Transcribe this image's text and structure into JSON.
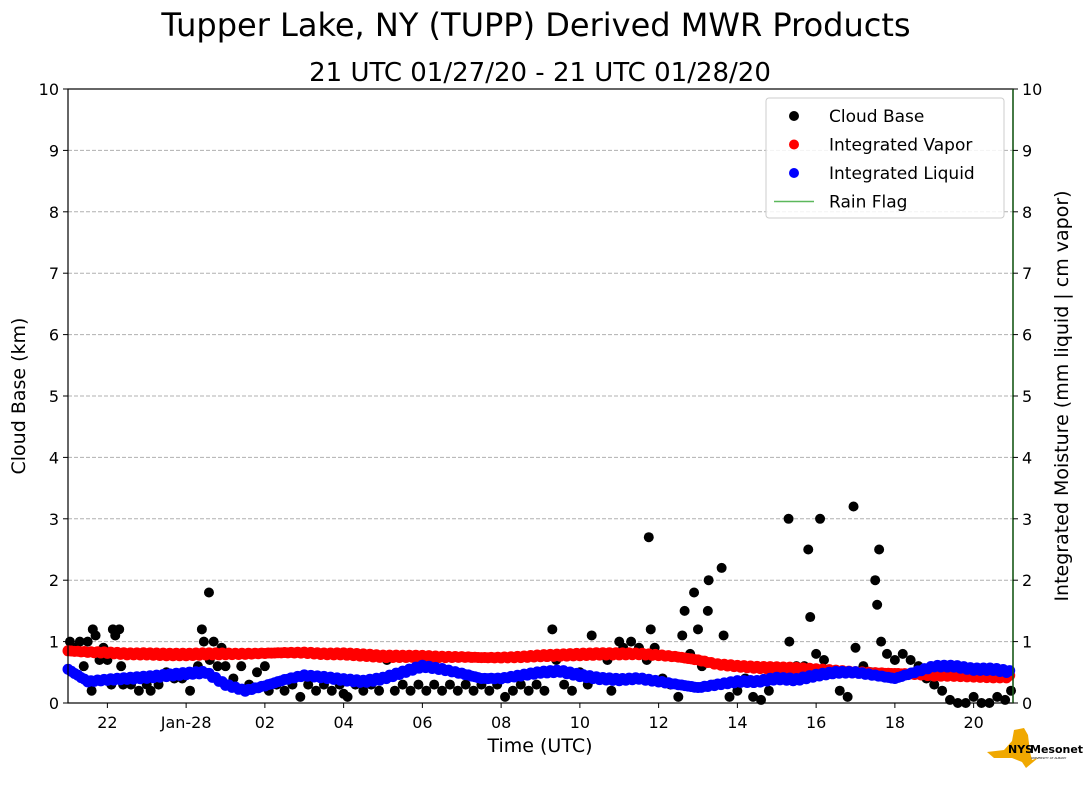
{
  "chart_data": {
    "type": "scatter",
    "title": "Tupper Lake, NY (TUPP) Derived MWR Products",
    "subtitle": "21 UTC 01/27/20 - 21 UTC 01/28/20",
    "xlabel": "Time (UTC)",
    "ylabel": "Cloud Base (km)",
    "ylabel_right": "Integrated Moisture (mm liquid | cm vapor)",
    "x_unit": "hours since 21 UTC 01/27/20",
    "xlim": [
      0,
      24
    ],
    "ylim": [
      0,
      10
    ],
    "ylim_right": [
      0,
      10
    ],
    "x_ticks": [
      {
        "t": 1,
        "label": "22"
      },
      {
        "t": 3,
        "label": "Jan-28"
      },
      {
        "t": 5,
        "label": "02"
      },
      {
        "t": 7,
        "label": "04"
      },
      {
        "t": 9,
        "label": "06"
      },
      {
        "t": 11,
        "label": "08"
      },
      {
        "t": 13,
        "label": "10"
      },
      {
        "t": 15,
        "label": "12"
      },
      {
        "t": 17,
        "label": "14"
      },
      {
        "t": 19,
        "label": "16"
      },
      {
        "t": 21,
        "label": "18"
      },
      {
        "t": 23,
        "label": "20"
      }
    ],
    "y_ticks": [
      "0",
      "1",
      "2",
      "3",
      "4",
      "5",
      "6",
      "7",
      "8",
      "9",
      "10"
    ],
    "grid": "horizontal dashed",
    "legend_position": "top-right",
    "legend": [
      {
        "label": "Cloud Base",
        "color": "#000000",
        "kind": "dot"
      },
      {
        "label": "Integrated Vapor",
        "color": "#ff0000",
        "kind": "dot"
      },
      {
        "label": "Integrated Liquid",
        "color": "#0000ff",
        "kind": "dot"
      },
      {
        "label": "Rain Flag",
        "color": "#5cb85c",
        "kind": "line"
      }
    ],
    "series": [
      {
        "name": "Integrated Vapor",
        "x_step_hours": 0.5,
        "values": [
          0.85,
          0.83,
          0.82,
          0.8,
          0.8,
          0.79,
          0.79,
          0.8,
          0.8,
          0.8,
          0.81,
          0.82,
          0.82,
          0.8,
          0.8,
          0.78,
          0.76,
          0.76,
          0.76,
          0.75,
          0.75,
          0.74,
          0.74,
          0.75,
          0.77,
          0.78,
          0.79,
          0.8,
          0.8,
          0.8,
          0.78,
          0.75,
          0.7,
          0.63,
          0.6,
          0.58,
          0.57,
          0.56,
          0.54,
          0.52,
          0.5,
          0.49,
          0.48,
          0.47,
          0.45,
          0.45,
          0.44,
          0.43,
          0.43
        ]
      },
      {
        "name": "Integrated Liquid",
        "x_step_hours": 0.5,
        "values": [
          0.55,
          0.35,
          0.38,
          0.4,
          0.42,
          0.45,
          0.48,
          0.5,
          0.3,
          0.2,
          0.28,
          0.38,
          0.45,
          0.42,
          0.38,
          0.35,
          0.4,
          0.5,
          0.6,
          0.55,
          0.48,
          0.4,
          0.4,
          0.45,
          0.5,
          0.52,
          0.45,
          0.4,
          0.38,
          0.4,
          0.35,
          0.3,
          0.25,
          0.3,
          0.35,
          0.35,
          0.4,
          0.38,
          0.45,
          0.5,
          0.5,
          0.45,
          0.4,
          0.5,
          0.6,
          0.6,
          0.55,
          0.55,
          0.5
        ]
      },
      {
        "name": "Cloud Base",
        "points": [
          [
            0.05,
            1.0
          ],
          [
            0.2,
            0.9
          ],
          [
            0.3,
            1.0
          ],
          [
            0.4,
            0.6
          ],
          [
            0.5,
            1.0
          ],
          [
            0.6,
            0.2
          ],
          [
            0.63,
            1.2
          ],
          [
            0.7,
            1.1
          ],
          [
            0.8,
            0.7
          ],
          [
            0.9,
            0.9
          ],
          [
            1.0,
            0.7
          ],
          [
            1.1,
            0.3
          ],
          [
            1.14,
            1.2
          ],
          [
            1.2,
            1.1
          ],
          [
            1.3,
            1.2
          ],
          [
            1.35,
            0.6
          ],
          [
            1.4,
            0.3
          ],
          [
            1.6,
            0.3
          ],
          [
            1.8,
            0.2
          ],
          [
            2.0,
            0.3
          ],
          [
            2.1,
            0.2
          ],
          [
            2.3,
            0.3
          ],
          [
            2.5,
            0.5
          ],
          [
            2.7,
            0.4
          ],
          [
            2.9,
            0.4
          ],
          [
            3.1,
            0.2
          ],
          [
            3.2,
            0.5
          ],
          [
            3.3,
            0.6
          ],
          [
            3.4,
            1.2
          ],
          [
            3.45,
            1.0
          ],
          [
            3.58,
            1.8
          ],
          [
            3.6,
            0.7
          ],
          [
            3.7,
            1.0
          ],
          [
            3.8,
            0.6
          ],
          [
            3.9,
            0.9
          ],
          [
            4.0,
            0.6
          ],
          [
            4.2,
            0.4
          ],
          [
            4.4,
            0.6
          ],
          [
            4.6,
            0.3
          ],
          [
            4.8,
            0.5
          ],
          [
            5.0,
            0.6
          ],
          [
            5.1,
            0.2
          ],
          [
            5.3,
            0.3
          ],
          [
            5.5,
            0.2
          ],
          [
            5.7,
            0.3
          ],
          [
            5.9,
            0.1
          ],
          [
            6.1,
            0.3
          ],
          [
            6.3,
            0.2
          ],
          [
            6.5,
            0.3
          ],
          [
            6.7,
            0.2
          ],
          [
            6.9,
            0.3
          ],
          [
            7.0,
            0.15
          ],
          [
            7.1,
            0.1
          ],
          [
            7.3,
            0.3
          ],
          [
            7.5,
            0.2
          ],
          [
            7.7,
            0.3
          ],
          [
            7.9,
            0.2
          ],
          [
            8.1,
            0.7
          ],
          [
            8.3,
            0.2
          ],
          [
            8.5,
            0.3
          ],
          [
            8.7,
            0.2
          ],
          [
            8.9,
            0.3
          ],
          [
            9.1,
            0.2
          ],
          [
            9.3,
            0.3
          ],
          [
            9.5,
            0.2
          ],
          [
            9.7,
            0.3
          ],
          [
            9.9,
            0.2
          ],
          [
            10.1,
            0.3
          ],
          [
            10.3,
            0.2
          ],
          [
            10.5,
            0.3
          ],
          [
            10.7,
            0.2
          ],
          [
            10.9,
            0.3
          ],
          [
            11.1,
            0.1
          ],
          [
            11.3,
            0.2
          ],
          [
            11.5,
            0.3
          ],
          [
            11.7,
            0.2
          ],
          [
            11.9,
            0.3
          ],
          [
            12.1,
            0.2
          ],
          [
            12.3,
            1.2
          ],
          [
            12.4,
            0.7
          ],
          [
            12.6,
            0.3
          ],
          [
            12.8,
            0.2
          ],
          [
            13.0,
            0.5
          ],
          [
            13.2,
            0.3
          ],
          [
            13.3,
            1.1
          ],
          [
            13.5,
            0.8
          ],
          [
            13.7,
            0.7
          ],
          [
            13.8,
            0.2
          ],
          [
            14.0,
            1.0
          ],
          [
            14.1,
            0.9
          ],
          [
            14.3,
            1.0
          ],
          [
            14.5,
            0.9
          ],
          [
            14.7,
            0.7
          ],
          [
            14.75,
            2.7
          ],
          [
            14.8,
            1.2
          ],
          [
            14.9,
            0.9
          ],
          [
            15.1,
            0.4
          ],
          [
            15.3,
            0.3
          ],
          [
            15.5,
            0.1
          ],
          [
            15.66,
            1.5
          ],
          [
            15.6,
            1.1
          ],
          [
            15.8,
            0.8
          ],
          [
            15.9,
            1.8
          ],
          [
            16.0,
            1.2
          ],
          [
            16.1,
            0.6
          ],
          [
            16.25,
            1.5
          ],
          [
            16.27,
            2.0
          ],
          [
            16.4,
            0.3
          ],
          [
            16.6,
            2.2
          ],
          [
            16.65,
            1.1
          ],
          [
            16.8,
            0.1
          ],
          [
            17.0,
            0.2
          ],
          [
            17.2,
            0.4
          ],
          [
            17.4,
            0.1
          ],
          [
            17.6,
            0.05
          ],
          [
            17.8,
            0.2
          ],
          [
            18.0,
            0.4
          ],
          [
            18.3,
            3.0
          ],
          [
            18.32,
            1.0
          ],
          [
            18.5,
            0.6
          ],
          [
            18.7,
            0.6
          ],
          [
            18.8,
            2.5
          ],
          [
            18.85,
            1.4
          ],
          [
            19.0,
            0.8
          ],
          [
            19.1,
            3.0
          ],
          [
            19.2,
            0.7
          ],
          [
            19.4,
            0.5
          ],
          [
            19.6,
            0.2
          ],
          [
            19.8,
            0.1
          ],
          [
            19.95,
            3.2
          ],
          [
            20.0,
            0.9
          ],
          [
            20.2,
            0.6
          ],
          [
            20.4,
            0.5
          ],
          [
            20.5,
            2.0
          ],
          [
            20.55,
            1.6
          ],
          [
            20.6,
            2.5
          ],
          [
            20.65,
            1.0
          ],
          [
            20.8,
            0.8
          ],
          [
            21.0,
            0.7
          ],
          [
            21.2,
            0.8
          ],
          [
            21.4,
            0.7
          ],
          [
            21.6,
            0.6
          ],
          [
            21.8,
            0.4
          ],
          [
            22.0,
            0.3
          ],
          [
            22.2,
            0.2
          ],
          [
            22.4,
            0.05
          ],
          [
            22.6,
            0.0
          ],
          [
            22.8,
            0.0
          ],
          [
            23.0,
            0.1
          ],
          [
            23.2,
            0.0
          ],
          [
            23.4,
            0.0
          ],
          [
            23.6,
            0.1
          ],
          [
            23.8,
            0.05
          ],
          [
            23.95,
            0.2
          ]
        ]
      }
    ]
  },
  "logo": {
    "text": "NYS Mesonet",
    "subtext": "UNIVERSITY AT ALBANY",
    "color_state": "#f0a800",
    "color_text": "#5b2a86"
  }
}
